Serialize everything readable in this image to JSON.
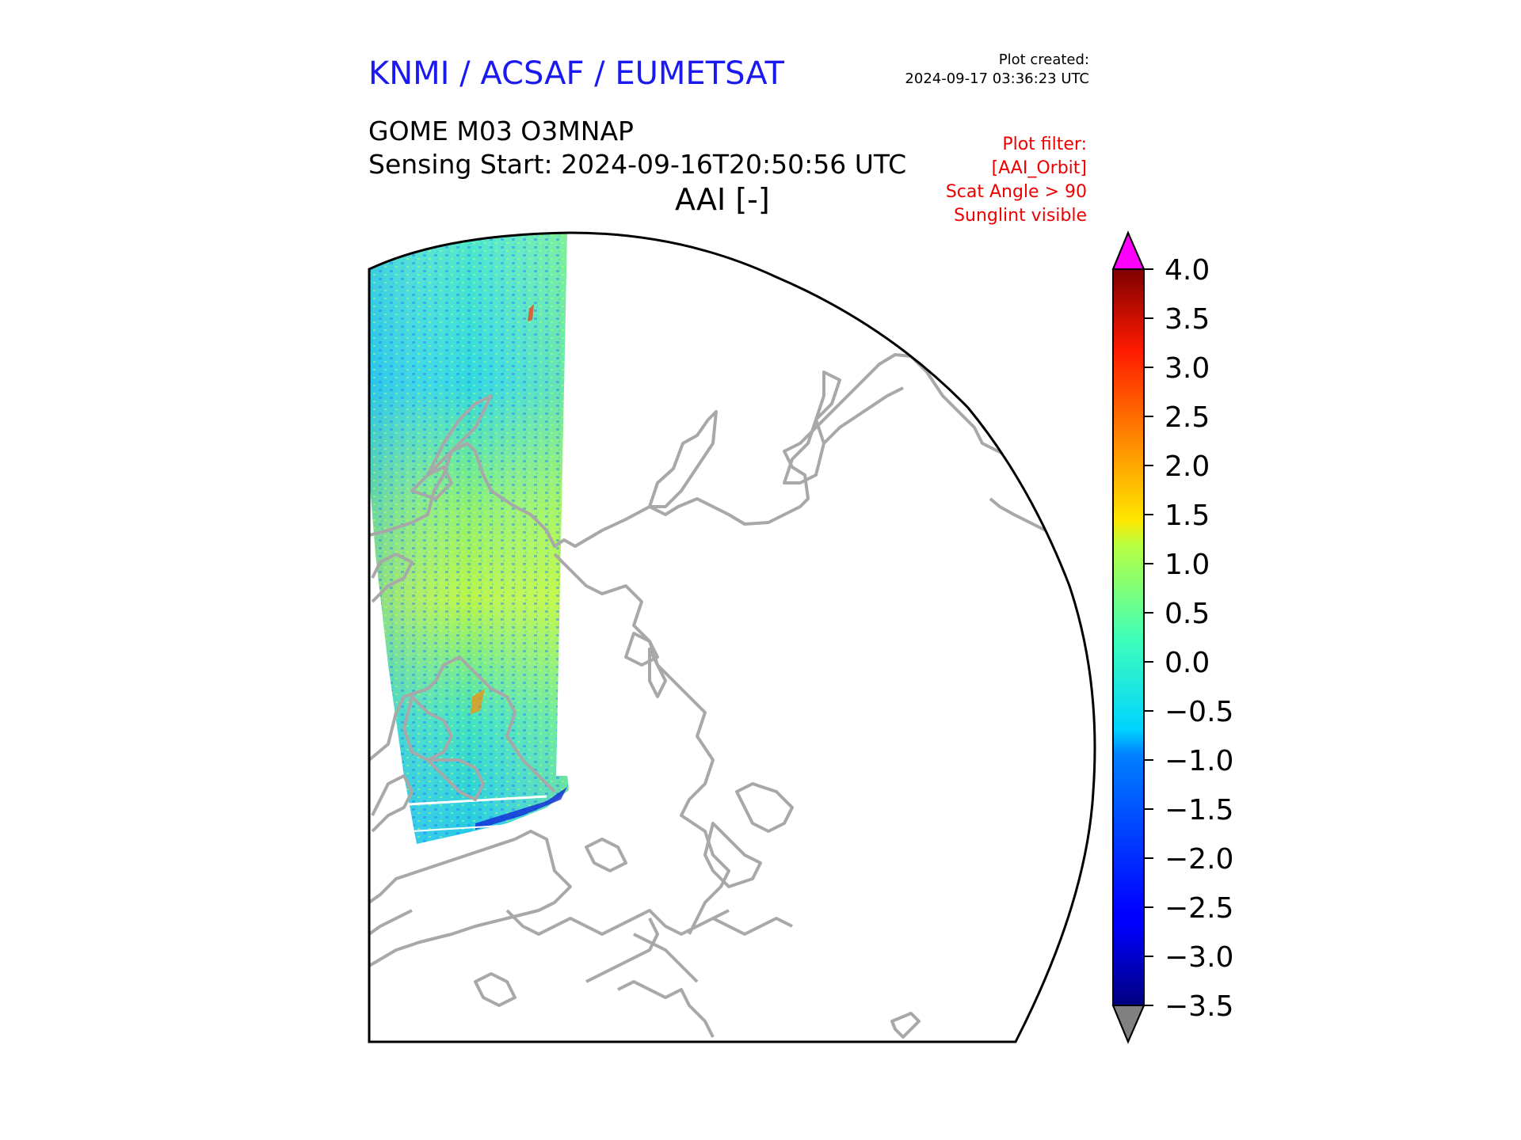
{
  "header": {
    "brand": "KNMI / ACSAF / EUMETSAT",
    "created_label": "Plot created:",
    "created_time": "2024-09-17 03:36:23 UTC",
    "product": "GOME M03 O3MNAP",
    "sensing_start": "Sensing Start: 2024-09-16T20:50:56 UTC",
    "variable": "AAI [-]",
    "filter_lines": [
      "Plot filter:",
      "[AAI_Orbit]",
      "Scat Angle > 90",
      "Sunglint visible"
    ]
  },
  "colorbar": {
    "min": -3.5,
    "max": 4.0,
    "ticks": [
      "4.0",
      "3.5",
      "3.0",
      "2.5",
      "2.0",
      "1.5",
      "1.0",
      "0.5",
      "0.0",
      "−0.5",
      "−1.0",
      "−1.5",
      "−2.0",
      "−2.5",
      "−3.0",
      "−3.5"
    ],
    "over_color": "#ff00ff",
    "under_color": "#808080",
    "colormap": "jet"
  },
  "map": {
    "projection": "polar stereographic (north)",
    "coastline_color": "#a8a8a8",
    "frame_color": "#000000"
  }
}
